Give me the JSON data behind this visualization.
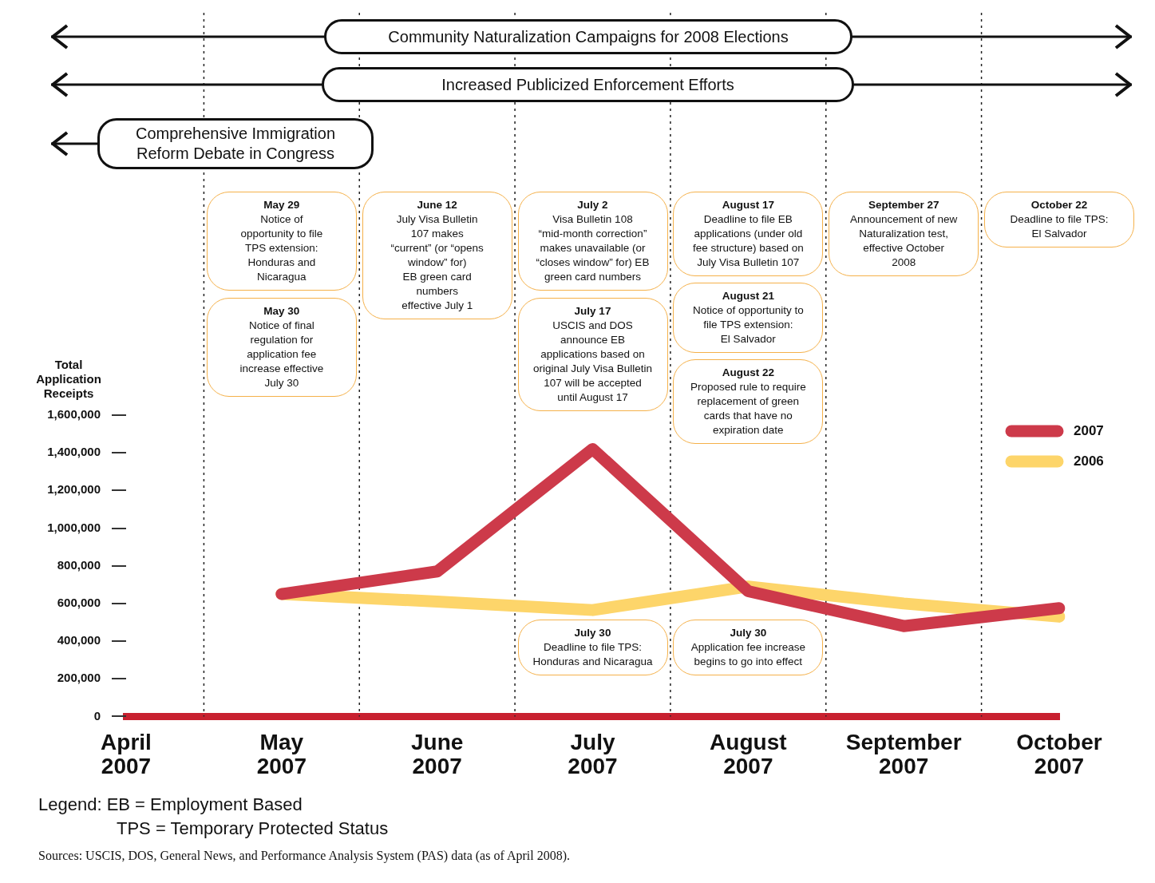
{
  "chart_data": {
    "type": "line",
    "ylabel": "Total Application Receipts",
    "categories": [
      "April 2007",
      "May 2007",
      "June 2007",
      "July 2007",
      "August 2007",
      "September 2007",
      "October 2007"
    ],
    "series": [
      {
        "name": "2007",
        "color": "#cd3a4a",
        "values": [
          null,
          650000,
          770000,
          1420000,
          665000,
          480000,
          575000
        ]
      },
      {
        "name": "2006",
        "color": "#fdd56a",
        "values": [
          null,
          650000,
          610000,
          565000,
          690000,
          600000,
          530000
        ]
      }
    ],
    "ylim": [
      0,
      1600000
    ],
    "yticks": [
      {
        "value": 0,
        "label": "0"
      },
      {
        "value": 200000,
        "label": "200,000"
      },
      {
        "value": 400000,
        "label": "400,000"
      },
      {
        "value": 600000,
        "label": "600,000"
      },
      {
        "value": 800000,
        "label": "800,000"
      },
      {
        "value": 1000000,
        "label": "1,000,000"
      },
      {
        "value": 1200000,
        "label": "1,200,000"
      },
      {
        "value": 1400000,
        "label": "1,400,000"
      },
      {
        "value": 1600000,
        "label": "1,600,000"
      }
    ],
    "grid": "x",
    "legend": "right",
    "annotations": [
      "Community Naturalization Campaigns for 2008 Elections",
      "Increased Publicized Enforcement Efforts",
      "Comprehensive Immigration\nReform Debate in Congress",
      "May 29\nNotice of\nopportunity to file\nTPS extension:\nHonduras and\nNicaragua",
      "May 30\nNotice of final\nregulation for\napplication fee\nincrease effective\nJuly 30",
      "June 12\nJuly Visa Bulletin\n107 makes\n“current” (or “opens\nwindow” for)\nEB green card\nnumbers\neffective July 1",
      "July 2\nVisa Bulletin 108\n“mid-month correction”\nmakes unavailable (or\n“closes window” for) EB\ngreen card numbers",
      "July 17\nUSCIS and DOS\nannounce EB\napplications based on\noriginal July Visa Bulletin\n107 will be accepted\nuntil August 17",
      "July 30\nDeadline to file TPS:\nHonduras and Nicaragua",
      "July 30\nApplication fee increase\nbegins to go into effect",
      "August 17\nDeadline to file EB\napplications (under old\nfee structure) based on\nJuly Visa Bulletin 107",
      "August 21\nNotice of opportunity to\nfile TPS extension:\nEl Salvador",
      "August 22\nProposed rule to require\nreplacement of green\ncards that have no\nexpiration date",
      "September 27\nAnnouncement of new\nNaturalization test,\neffective October\n2008",
      "October 22\nDeadline to file TPS:\nEl Salvador",
      "Legend: EB = Employment Based",
      "TPS = Temporary Protected Status",
      "Sources: USCIS, DOS, General News, and Performance Analysis System (PAS) data (as of April 2008)."
    ]
  }
}
